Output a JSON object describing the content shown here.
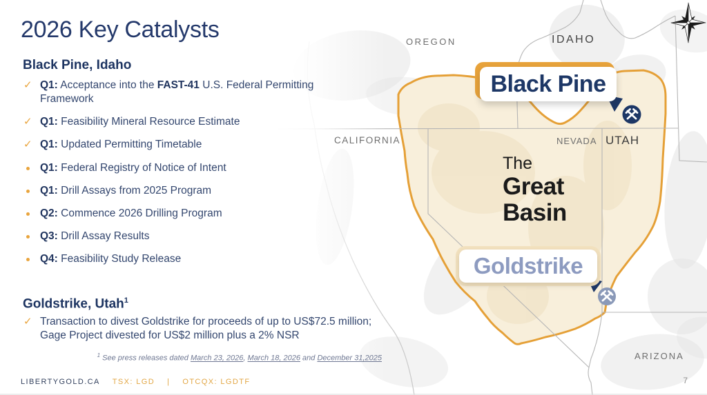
{
  "slide": {
    "title": "2026 Key Catalysts",
    "page_number": "7",
    "footer": {
      "site": "LIBERTYGOLD.CA",
      "ticker_tsx": "TSX: LGD",
      "pipe": "|",
      "ticker_otcqx": "OTCQX: LGDTF"
    },
    "sections": [
      {
        "heading": "Black Pine, Idaho",
        "sup": "",
        "items": [
          {
            "marker": "check",
            "q": "Q1:",
            "pre": "Acceptance into the ",
            "strong": "FAST-41",
            "post": " U.S. Federal Permitting Framework"
          },
          {
            "marker": "check",
            "q": "Q1:",
            "text": "Feasibility Mineral Resource Estimate"
          },
          {
            "marker": "check",
            "q": "Q1:",
            "text": "Updated Permitting Timetable"
          },
          {
            "marker": "dot",
            "q": "Q1:",
            "text": "Federal Registry of Notice of Intent"
          },
          {
            "marker": "dot",
            "q": "Q1:",
            "text": "Drill Assays from 2025 Program"
          },
          {
            "marker": "dot",
            "q": "Q2:",
            "text": "Commence 2026 Drilling Program"
          },
          {
            "marker": "dot",
            "q": "Q3:",
            "text": "Drill Assay Results"
          },
          {
            "marker": "dot",
            "q": "Q4:",
            "text": "Feasibility Study Release"
          }
        ]
      },
      {
        "heading": "Goldstrike, Utah",
        "sup": "1",
        "items": [
          {
            "marker": "check",
            "q": "",
            "text": "Transaction to divest Goldstrike for proceeds of up to US$72.5 million; Gage Project divested for US$2 million plus a 2% NSR"
          }
        ]
      }
    ],
    "footnote": {
      "sup": "1",
      "prefix": " See press releases dated ",
      "link1": "March 23, 2026",
      "sep1": ", ",
      "link2": "March 18, 2026",
      "sep2": " and ",
      "link3": "December 31,2025"
    }
  },
  "map": {
    "states": {
      "oregon": "OREGON",
      "idaho": "IDAHO",
      "california": "CALIFORNIA",
      "nevada": "NEVADA",
      "utah": "UTAH",
      "arizona": "ARIZONA"
    },
    "region": {
      "line1": "The",
      "line2": "Great",
      "line3": "Basin"
    },
    "black_pine_label": "Black Pine",
    "goldstrike_label": "Goldstrike",
    "icons": [
      "compass-rose-icon",
      "hammer-pick-mine-icon"
    ]
  },
  "colors": {
    "navy": "#1D3766",
    "gold_accent": "#E8A33B",
    "basin_fill": "#F8EFDB",
    "goldstrike_slate": "#8D9BC0",
    "check_gold": "#E9A43C"
  }
}
